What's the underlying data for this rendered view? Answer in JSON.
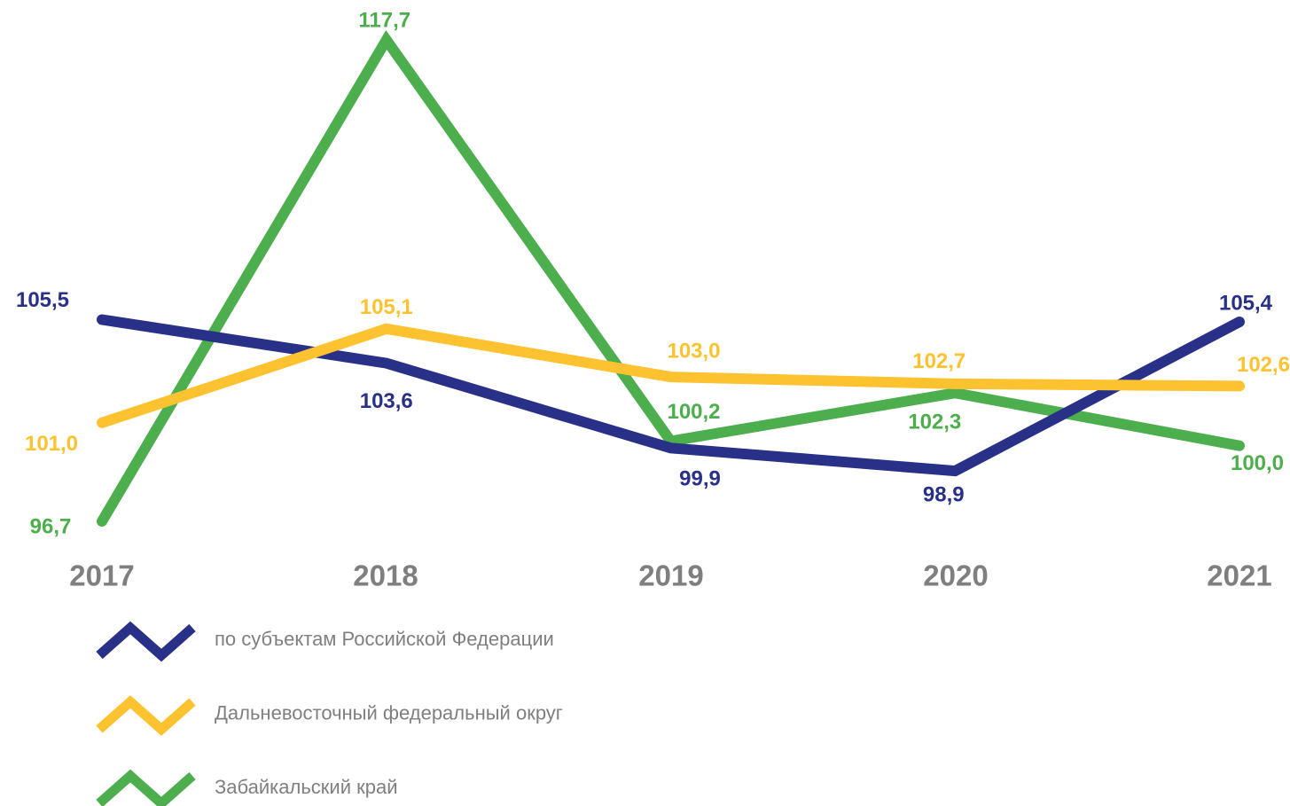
{
  "chart_data": {
    "type": "line",
    "categories": [
      "2017",
      "2018",
      "2019",
      "2020",
      "2021"
    ],
    "series": [
      {
        "name": "по субъектам Российской Федерации",
        "color": "#283087",
        "values": [
          105.5,
          103.6,
          99.9,
          98.9,
          105.4
        ],
        "value_labels": [
          "105,5",
          "103,6",
          "99,9",
          "98,9",
          "105,4"
        ]
      },
      {
        "name": "Дальневосточный федеральный округ",
        "color": "#fcc22f",
        "values": [
          101.0,
          105.1,
          103.0,
          102.7,
          102.6
        ],
        "value_labels": [
          "101,0",
          "105,1",
          "103,0",
          "102,7",
          "102,6"
        ]
      },
      {
        "name": "Забайкальский край",
        "color": "#4cae4c",
        "values": [
          96.7,
          117.7,
          100.2,
          102.3,
          100.0
        ],
        "value_labels": [
          "96,7",
          "117,7",
          "100,2",
          "102,3",
          "100,0"
        ]
      }
    ]
  }
}
